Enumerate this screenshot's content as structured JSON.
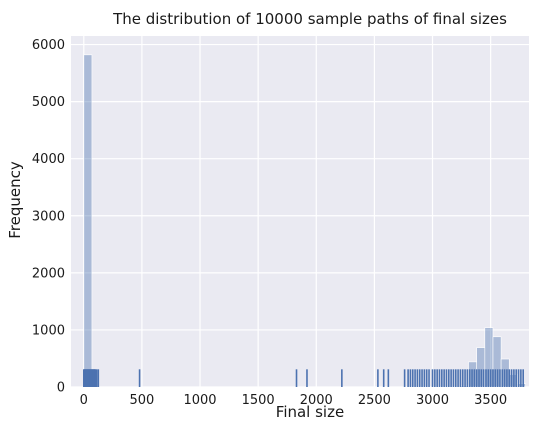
{
  "chart_data": {
    "type": "bar",
    "subtype": "histogram-with-rug",
    "title": "The distribution of 10000 sample paths of final sizes",
    "xlabel": "Final size",
    "ylabel": "Frequency",
    "xlim": [
      -110,
      3830
    ],
    "ylim": [
      0,
      6150
    ],
    "x_ticks": [
      0,
      500,
      1000,
      1500,
      2000,
      2500,
      3000,
      3500
    ],
    "y_ticks": [
      0,
      1000,
      2000,
      3000,
      4000,
      5000,
      6000
    ],
    "grid": true,
    "background": "#eaeaf2",
    "bar_color": "#4c72b0",
    "bar_alpha": 0.4,
    "rug_color": "#4c72b0",
    "rug_height": 310,
    "series": [
      {
        "bins": [
          {
            "x0": 0,
            "x1": 70,
            "count": 5820
          },
          {
            "x0": 3240,
            "x1": 3310,
            "count": 20
          },
          {
            "x0": 3310,
            "x1": 3380,
            "count": 440
          },
          {
            "x0": 3380,
            "x1": 3450,
            "count": 690
          },
          {
            "x0": 3450,
            "x1": 3520,
            "count": 1040
          },
          {
            "x0": 3520,
            "x1": 3590,
            "count": 880
          },
          {
            "x0": 3590,
            "x1": 3660,
            "count": 490
          },
          {
            "x0": 3660,
            "x1": 3730,
            "count": 220
          },
          {
            "x0": 3730,
            "x1": 3800,
            "count": 60
          }
        ],
        "rug": [
          0,
          5,
          10,
          15,
          20,
          25,
          30,
          35,
          40,
          45,
          50,
          55,
          60,
          65,
          70,
          75,
          80,
          85,
          90,
          95,
          100,
          110,
          125,
          480,
          1830,
          1920,
          2220,
          2530,
          2580,
          2620,
          2760,
          2790,
          2810,
          2830,
          2850,
          2870,
          2890,
          2910,
          2930,
          2950,
          2970,
          3000,
          3020,
          3040,
          3060,
          3080,
          3100,
          3120,
          3140,
          3160,
          3180,
          3200,
          3220,
          3240,
          3260,
          3280,
          3300,
          3320,
          3340,
          3360,
          3380,
          3400,
          3420,
          3440,
          3460,
          3480,
          3500,
          3520,
          3540,
          3560,
          3580,
          3600,
          3620,
          3640,
          3660,
          3680,
          3700,
          3720,
          3740,
          3760,
          3780
        ]
      }
    ]
  }
}
